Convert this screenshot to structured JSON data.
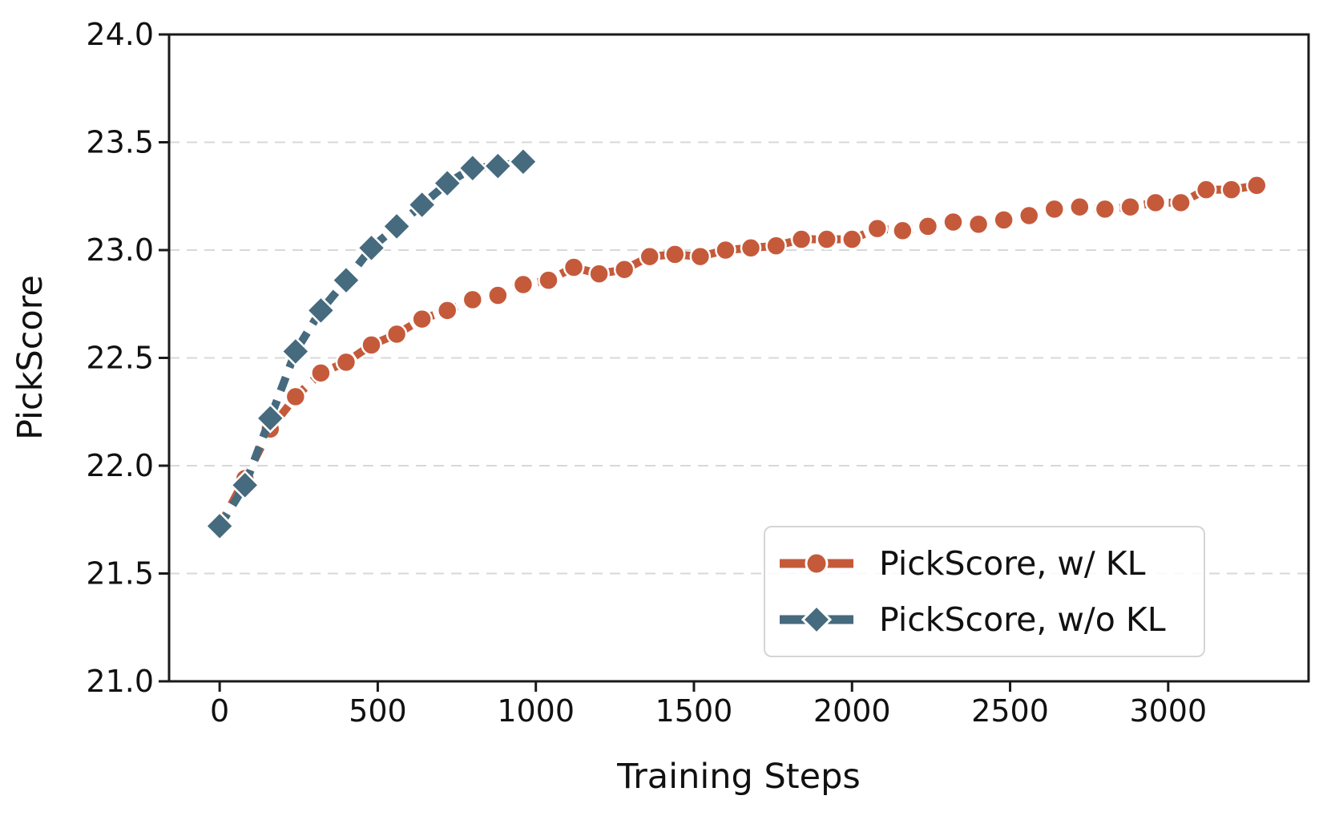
{
  "chart_data": {
    "type": "line",
    "title": "",
    "xlabel": "Training Steps",
    "ylabel": "PickScore",
    "xlim": [
      -160,
      3444
    ],
    "ylim": [
      21.0,
      24.0
    ],
    "x_ticks": [
      0,
      500,
      1000,
      1500,
      2000,
      2500,
      3000
    ],
    "x_tick_labels": [
      "0",
      "500",
      "1000",
      "1500",
      "2000",
      "2500",
      "3000"
    ],
    "y_ticks": [
      21.0,
      21.5,
      22.0,
      22.5,
      23.0,
      23.5,
      24.0
    ],
    "y_tick_labels": [
      "21.0",
      "21.5",
      "22.0",
      "22.5",
      "23.0",
      "23.5",
      "24.0"
    ],
    "grid": "horizontal-dashed",
    "legend_position": "lower right",
    "series": [
      {
        "name": "PickScore, w/ KL",
        "color": "#c55a3b",
        "marker": "circle",
        "linestyle": "dashed",
        "x": [
          0,
          80,
          160,
          240,
          320,
          400,
          480,
          560,
          640,
          720,
          800,
          880,
          960,
          1040,
          1120,
          1200,
          1280,
          1360,
          1440,
          1520,
          1600,
          1680,
          1760,
          1840,
          1920,
          2000,
          2080,
          2160,
          2240,
          2320,
          2400,
          2480,
          2560,
          2640,
          2720,
          2800,
          2880,
          2960,
          3040,
          3120,
          3200,
          3280
        ],
        "y": [
          21.72,
          21.94,
          22.17,
          22.32,
          22.43,
          22.48,
          22.56,
          22.61,
          22.68,
          22.72,
          22.77,
          22.79,
          22.84,
          22.86,
          22.92,
          22.89,
          22.91,
          22.97,
          22.98,
          22.97,
          23.0,
          23.01,
          23.02,
          23.05,
          23.05,
          23.05,
          23.1,
          23.09,
          23.11,
          23.13,
          23.12,
          23.14,
          23.16,
          23.19,
          23.2,
          23.19,
          23.2,
          23.22,
          23.22,
          23.28,
          23.28,
          23.3
        ]
      },
      {
        "name": "PickScore, w/o KL",
        "color": "#466a7e",
        "marker": "diamond",
        "linestyle": "dashed",
        "x": [
          0,
          80,
          160,
          240,
          320,
          400,
          480,
          560,
          640,
          720,
          800,
          880,
          960
        ],
        "y": [
          21.72,
          21.91,
          22.22,
          22.53,
          22.72,
          22.86,
          23.01,
          23.11,
          23.21,
          23.31,
          23.38,
          23.39,
          23.41
        ]
      }
    ]
  }
}
